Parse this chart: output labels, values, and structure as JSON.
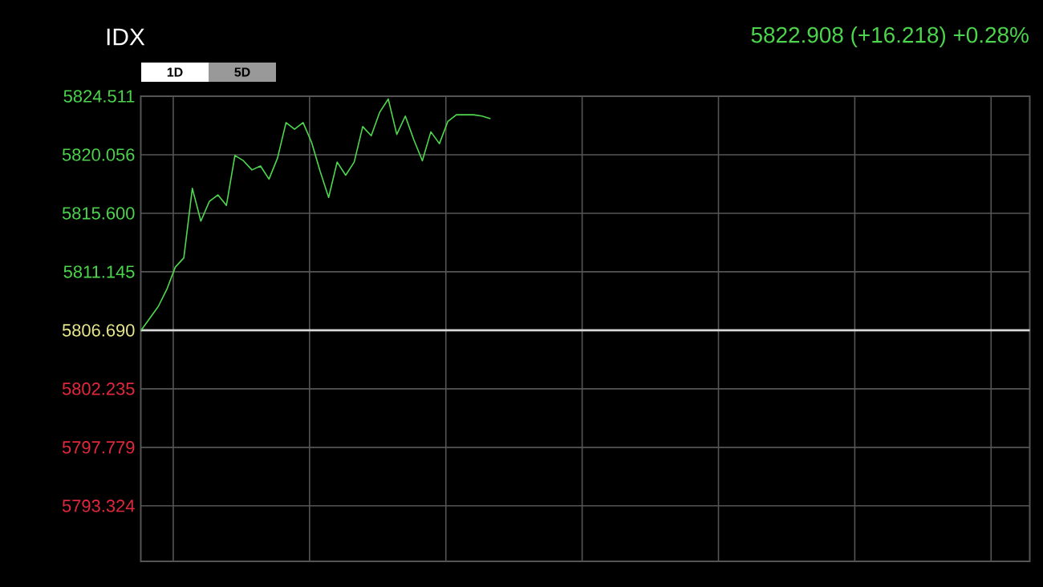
{
  "chart_data": {
    "type": "line",
    "title": "IDX",
    "subtitle": "5822.908 (+16.218) +0.28%",
    "annotations": [
      "1D",
      "5D"
    ],
    "categories": [
      null,
      null,
      null,
      null,
      null,
      null,
      null,
      null,
      null,
      null,
      null,
      null,
      null,
      null,
      null,
      null,
      null,
      null,
      null,
      null,
      null,
      null,
      null,
      null,
      null,
      null,
      null,
      null,
      null,
      null,
      null,
      null,
      null,
      null,
      null,
      null,
      null,
      null,
      null,
      null,
      null,
      null,
      null,
      null,
      null,
      null,
      null,
      null,
      null,
      null,
      null,
      null,
      null,
      null,
      null,
      null,
      null,
      null,
      null,
      null,
      null,
      null,
      null,
      null,
      null,
      null,
      null,
      null,
      null,
      null,
      null,
      null,
      null,
      null,
      null,
      null,
      null,
      null,
      null,
      null,
      null,
      null,
      null,
      null,
      null,
      null,
      null,
      null,
      null,
      null,
      null,
      null,
      null,
      null,
      null,
      null,
      null,
      null,
      null,
      null,
      null,
      null,
      null,
      null,
      null
    ],
    "series": [
      {
        "color": "#4fd84f",
        "values": [
          5806.7,
          5807.6,
          5808.5,
          5809.8,
          5811.5,
          5812.2,
          5817.5,
          5815.0,
          5816.5,
          5817.0,
          5816.2,
          5820.0,
          5819.6,
          5818.9,
          5819.2,
          5818.2,
          5819.8,
          5822.5,
          5822.0,
          5822.5,
          5821.0,
          5818.8,
          5816.8,
          5819.5,
          5818.5,
          5819.5,
          5822.2,
          5821.5,
          5823.3,
          5824.3,
          5821.6,
          5823.0,
          5821.2,
          5819.6,
          5821.8,
          5820.9,
          5822.6,
          5823.1,
          5823.1,
          5823.1,
          5823.0,
          5822.8,
          null,
          null,
          null,
          null,
          null,
          null,
          null,
          null,
          null,
          null,
          null,
          null,
          null,
          null,
          null,
          null,
          null,
          null,
          null,
          null,
          null,
          null,
          null,
          null,
          null,
          null,
          null,
          null,
          null,
          null,
          null,
          null,
          null,
          null,
          null,
          null,
          null,
          null,
          null,
          null,
          null,
          null,
          null,
          null,
          null,
          null,
          null,
          null,
          null,
          null,
          null,
          null,
          null,
          null,
          null,
          null,
          null,
          null,
          null,
          null,
          null,
          null,
          null
        ]
      }
    ],
    "ylim": [
      5789.1,
      5824.511
    ],
    "yticks": [
      {
        "value": 5824.511,
        "label": "5824.511"
      },
      {
        "value": 5820.056,
        "label": "5820.056"
      },
      {
        "value": 5815.6,
        "label": "5815.600"
      },
      {
        "value": 5811.145,
        "label": "5811.145"
      },
      {
        "value": 5806.69,
        "label": "5806.690"
      },
      {
        "value": 5802.235,
        "label": "5802.235"
      },
      {
        "value": 5797.779,
        "label": "5797.779"
      },
      {
        "value": 5793.324,
        "label": "5793.324"
      }
    ],
    "ref_lines": [
      {
        "axis": "y",
        "value": 5806.69,
        "color": "#d8d8d8"
      }
    ],
    "grid": true,
    "tick_labels": "y"
  }
}
